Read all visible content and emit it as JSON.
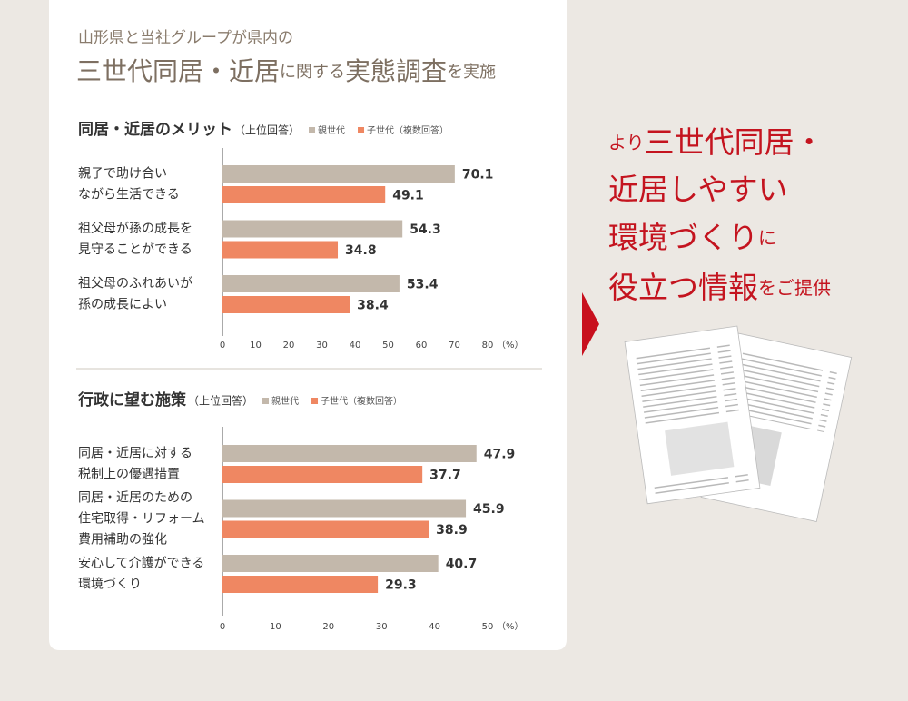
{
  "header": {
    "line1": "山形県と当社グループが県内の",
    "line2": [
      {
        "text": "三世代同居・近居",
        "big": true
      },
      {
        "text": "に関する",
        "big": false
      },
      {
        "text": "実態調査",
        "big": true
      },
      {
        "text": "を実施",
        "big": false
      }
    ]
  },
  "chart_data": [
    {
      "type": "hbar",
      "title": "同居・近居のメリット",
      "subtitle": "（上位回答）",
      "categories": [
        [
          "親子で助け合い",
          "ながら生活できる"
        ],
        [
          "祖父母が孫の成長を",
          "見守ることができる"
        ],
        [
          "祖父母のふれあいが",
          "孫の成長によい"
        ]
      ],
      "series": [
        {
          "name": "親世代",
          "color": "#c3b8ab",
          "values": [
            70.1,
            54.3,
            53.4
          ]
        },
        {
          "name": "子世代（複数回答）",
          "color": "#ef8762",
          "values": [
            49.1,
            34.8,
            38.4
          ]
        }
      ],
      "xlim": [
        0,
        80
      ],
      "xticks": [
        0,
        10,
        20,
        30,
        40,
        50,
        60,
        70,
        80
      ],
      "x_unit": "（%）"
    },
    {
      "type": "hbar",
      "title": "行政に望む施策",
      "subtitle": "（上位回答）",
      "categories": [
        [
          "同居・近居に対する",
          "税制上の優遇措置"
        ],
        [
          "同居・近居のための",
          "住宅取得・リフォーム",
          "費用補助の強化"
        ],
        [
          "安心して介護ができる",
          "環境づくり"
        ]
      ],
      "series": [
        {
          "name": "親世代",
          "color": "#c3b8ab",
          "values": [
            47.9,
            45.9,
            40.7
          ]
        },
        {
          "name": "子世代（複数回答）",
          "color": "#ef8762",
          "values": [
            37.7,
            38.9,
            29.3
          ]
        }
      ],
      "xlim": [
        0,
        50
      ],
      "xticks": [
        0,
        10,
        20,
        30,
        40,
        50
      ],
      "x_unit": "（%）"
    }
  ],
  "promo": {
    "lines": [
      [
        {
          "text": "より",
          "big": false
        },
        {
          "text": "三世代同居・",
          "big": true
        }
      ],
      [
        {
          "text": "近居しやすい",
          "big": true
        }
      ],
      [
        {
          "text": "環境づくり",
          "big": true
        },
        {
          "text": "に",
          "big": false
        }
      ],
      [
        {
          "text": "役立つ情報",
          "big": true
        },
        {
          "text": "をご提供",
          "big": false
        }
      ]
    ]
  }
}
